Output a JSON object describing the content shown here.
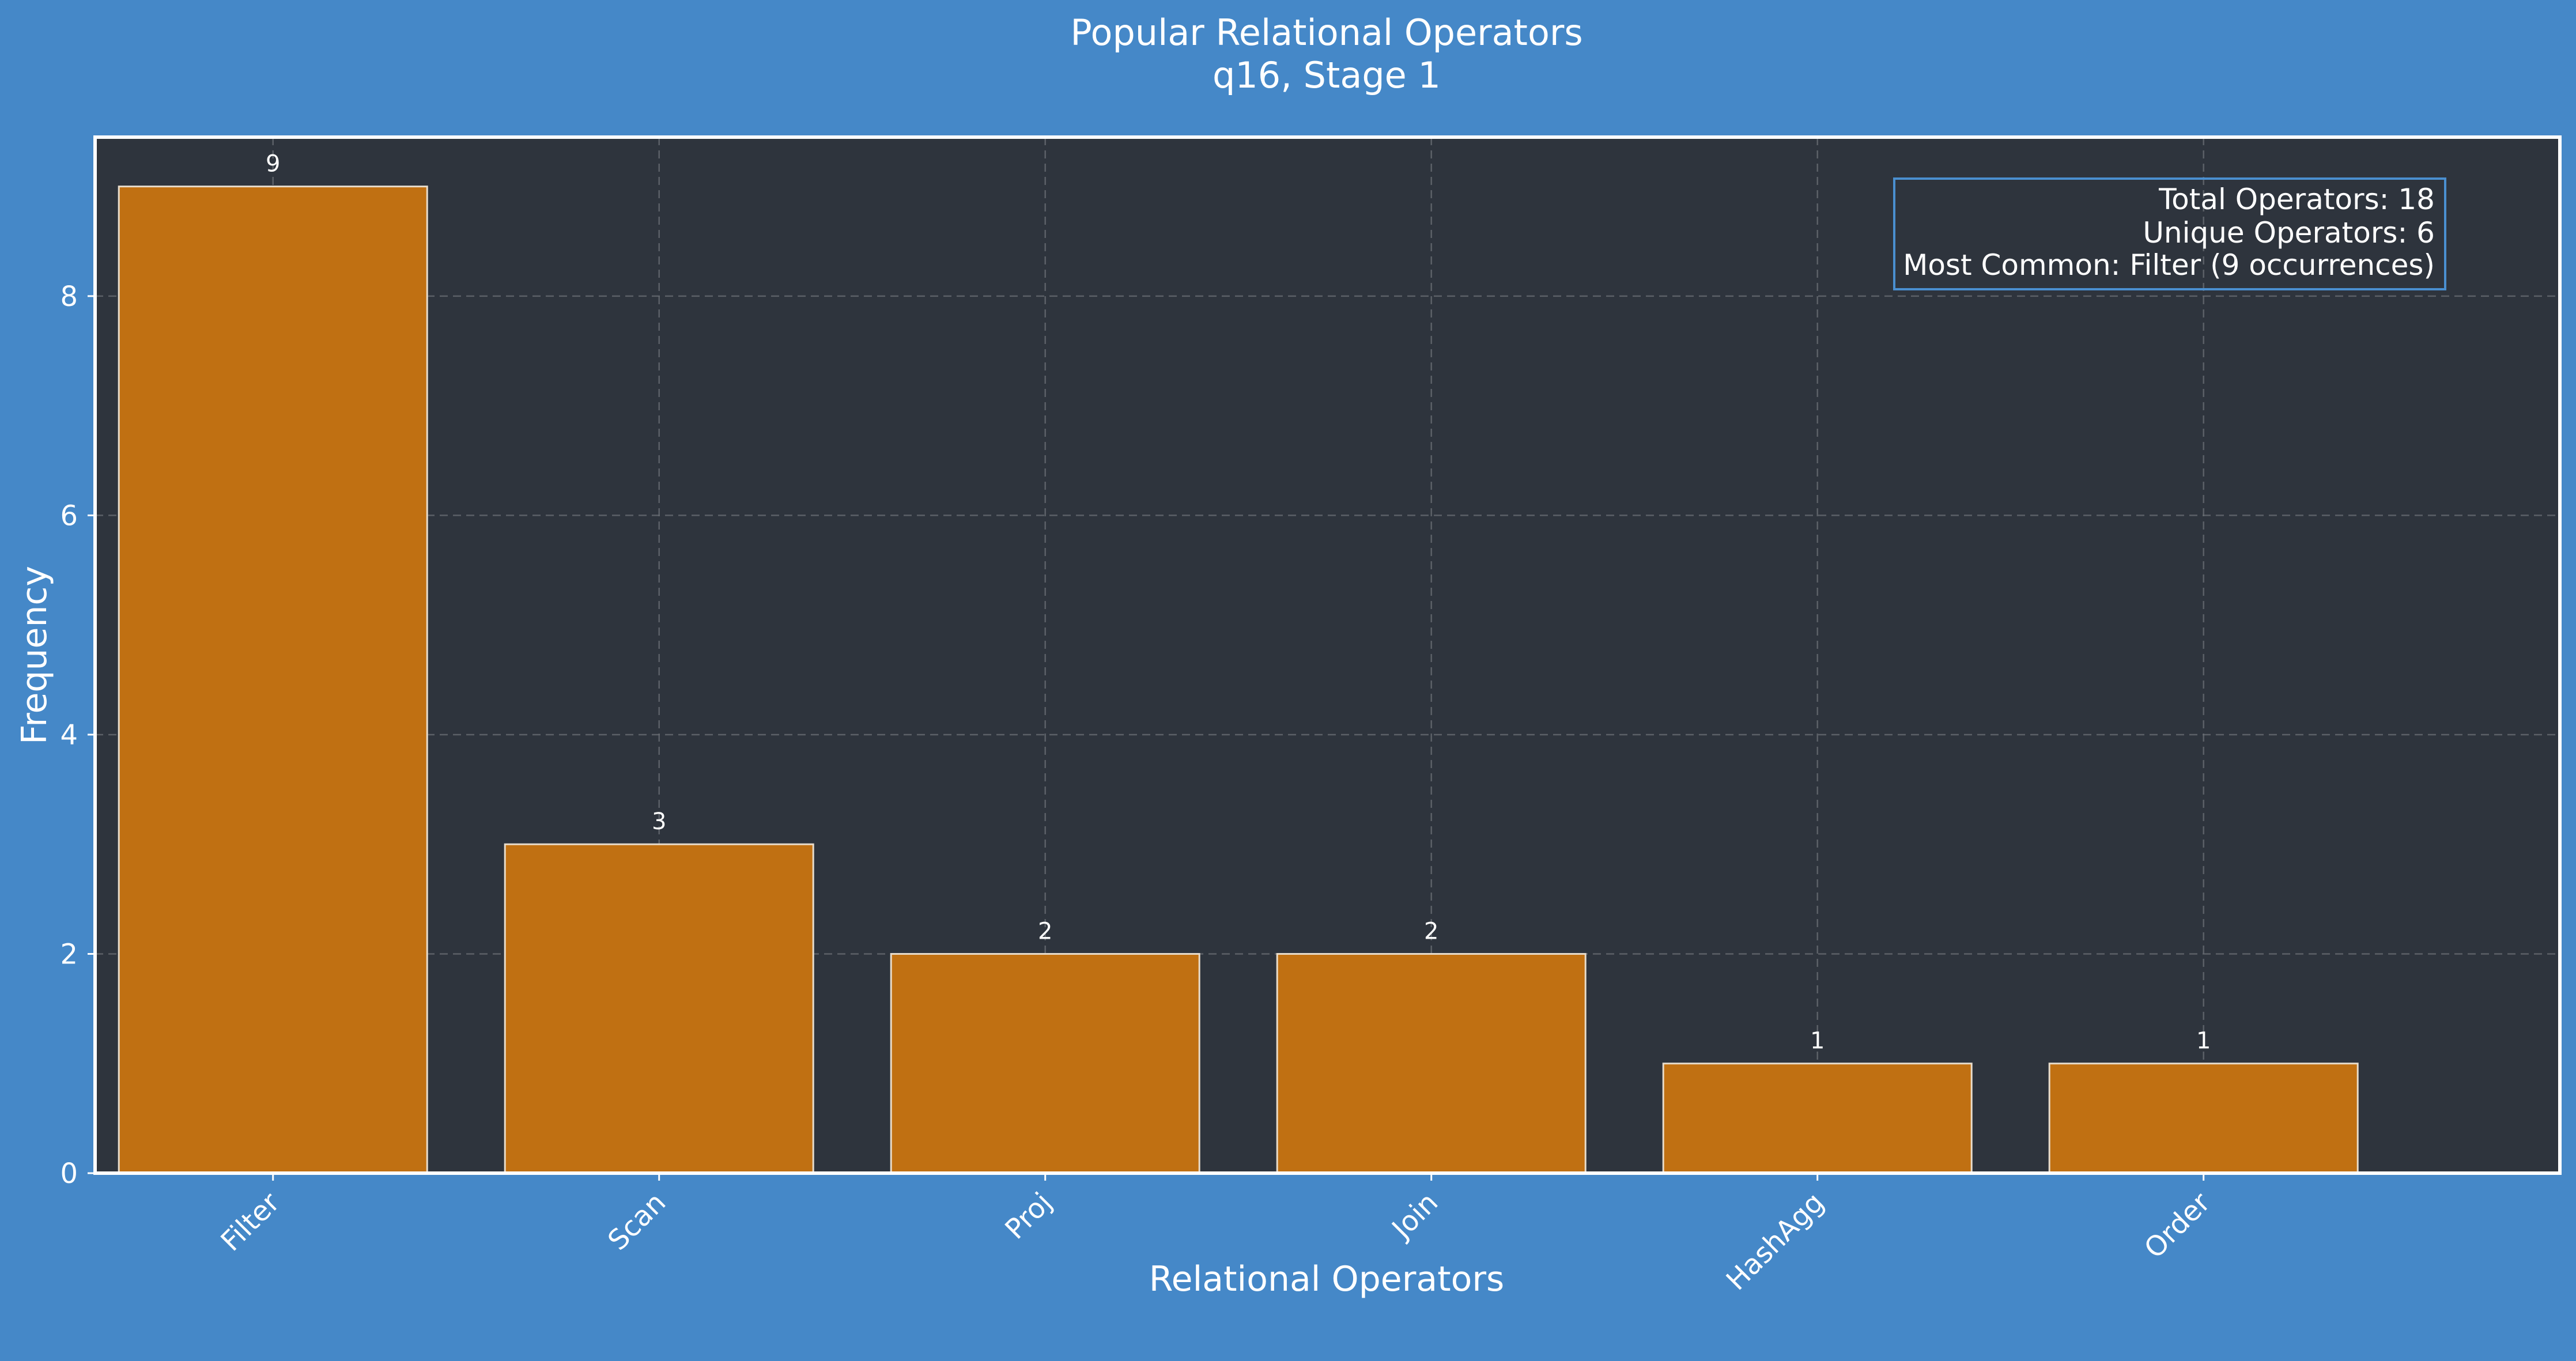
{
  "colors": {
    "page_background": "#4588c8",
    "plot_background": "#2e343d",
    "bar_fill": "#c07012",
    "bar_edge": "#e8dccb",
    "text": "#ffffff",
    "stats_box_border": "#4a8fd0"
  },
  "chart_data": {
    "type": "bar",
    "title": "Popular Relational Operators",
    "subtitle": "q16, Stage 1",
    "xlabel": "Relational Operators",
    "ylabel": "Frequency",
    "categories": [
      "Filter",
      "Scan",
      "Proj",
      "Join",
      "HashAgg",
      "Order"
    ],
    "values": [
      9,
      3,
      2,
      2,
      1,
      1
    ],
    "data_labels": [
      "9",
      "3",
      "2",
      "2",
      "1",
      "1"
    ],
    "ylim": [
      0,
      9.45
    ],
    "yticks": [
      0,
      2,
      4,
      6,
      8
    ],
    "grid": true,
    "x_tick_rotation": "45 degrees",
    "stats_box": {
      "position": "top-right",
      "lines": [
        "Total Operators: 18",
        "Unique Operators: 6",
        "Most Common: Filter (9 occurrences)"
      ]
    }
  }
}
